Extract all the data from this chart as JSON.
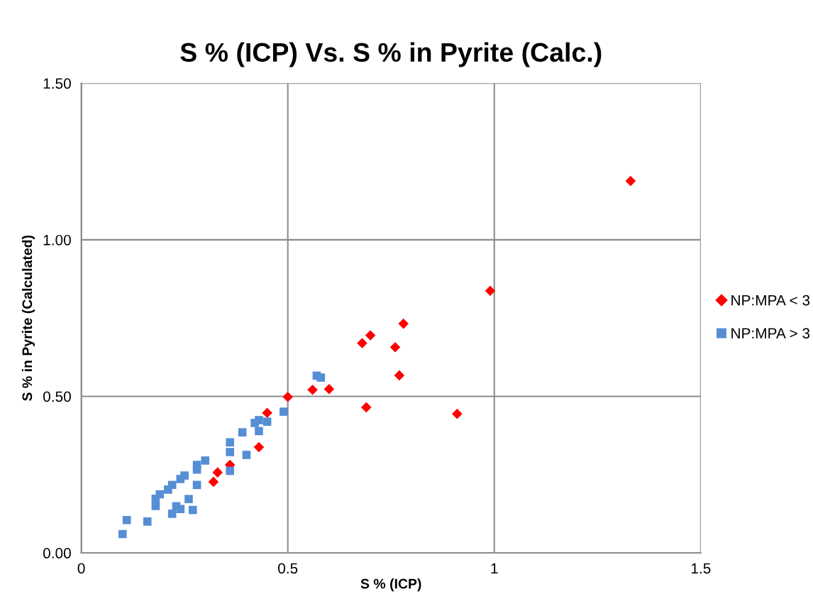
{
  "chart_data": {
    "type": "scatter",
    "title": "S % (ICP) Vs. S % in Pyrite (Calc.)",
    "xlabel": "S % (ICP)",
    "ylabel": "S % in Pyrite (Calculated)",
    "xlim": [
      0,
      1.5
    ],
    "xticks": [
      0,
      0.5,
      1,
      1.5
    ],
    "ylim": [
      0,
      1.5
    ],
    "yticks": [
      {
        "value": 0,
        "label": "0.00"
      },
      {
        "value": 0.5,
        "label": "0.50"
      },
      {
        "value": 1.0,
        "label": "1.00"
      },
      {
        "value": 1.5,
        "label": "1.50"
      }
    ],
    "grid": true,
    "legend": "right",
    "series": [
      {
        "name": "NP:MPA < 3",
        "color": "#ff0000",
        "marker": "diamond",
        "x": [
          0.32,
          0.33,
          0.36,
          0.43,
          0.45,
          0.5,
          0.56,
          0.6,
          0.68,
          0.7,
          0.78,
          0.76,
          0.77,
          0.69,
          0.91,
          0.99,
          1.33
        ],
        "values": [
          0.227,
          0.257,
          0.281,
          0.338,
          0.447,
          0.498,
          0.521,
          0.523,
          0.67,
          0.695,
          0.732,
          0.657,
          0.567,
          0.465,
          0.444,
          0.837,
          1.188
        ]
      },
      {
        "name": "NP:MPA > 3",
        "color": "#558ed5",
        "marker": "square",
        "x": [
          0.1,
          0.11,
          0.16,
          0.18,
          0.18,
          0.19,
          0.21,
          0.22,
          0.22,
          0.23,
          0.24,
          0.24,
          0.25,
          0.26,
          0.27,
          0.28,
          0.28,
          0.28,
          0.3,
          0.36,
          0.36,
          0.36,
          0.39,
          0.4,
          0.42,
          0.43,
          0.43,
          0.45,
          0.49,
          0.57,
          0.58
        ],
        "values": [
          0.06,
          0.105,
          0.1,
          0.15,
          0.173,
          0.187,
          0.202,
          0.217,
          0.125,
          0.149,
          0.14,
          0.236,
          0.247,
          0.172,
          0.137,
          0.217,
          0.266,
          0.281,
          0.295,
          0.262,
          0.322,
          0.353,
          0.385,
          0.313,
          0.415,
          0.424,
          0.389,
          0.419,
          0.451,
          0.566,
          0.56
        ]
      }
    ]
  }
}
